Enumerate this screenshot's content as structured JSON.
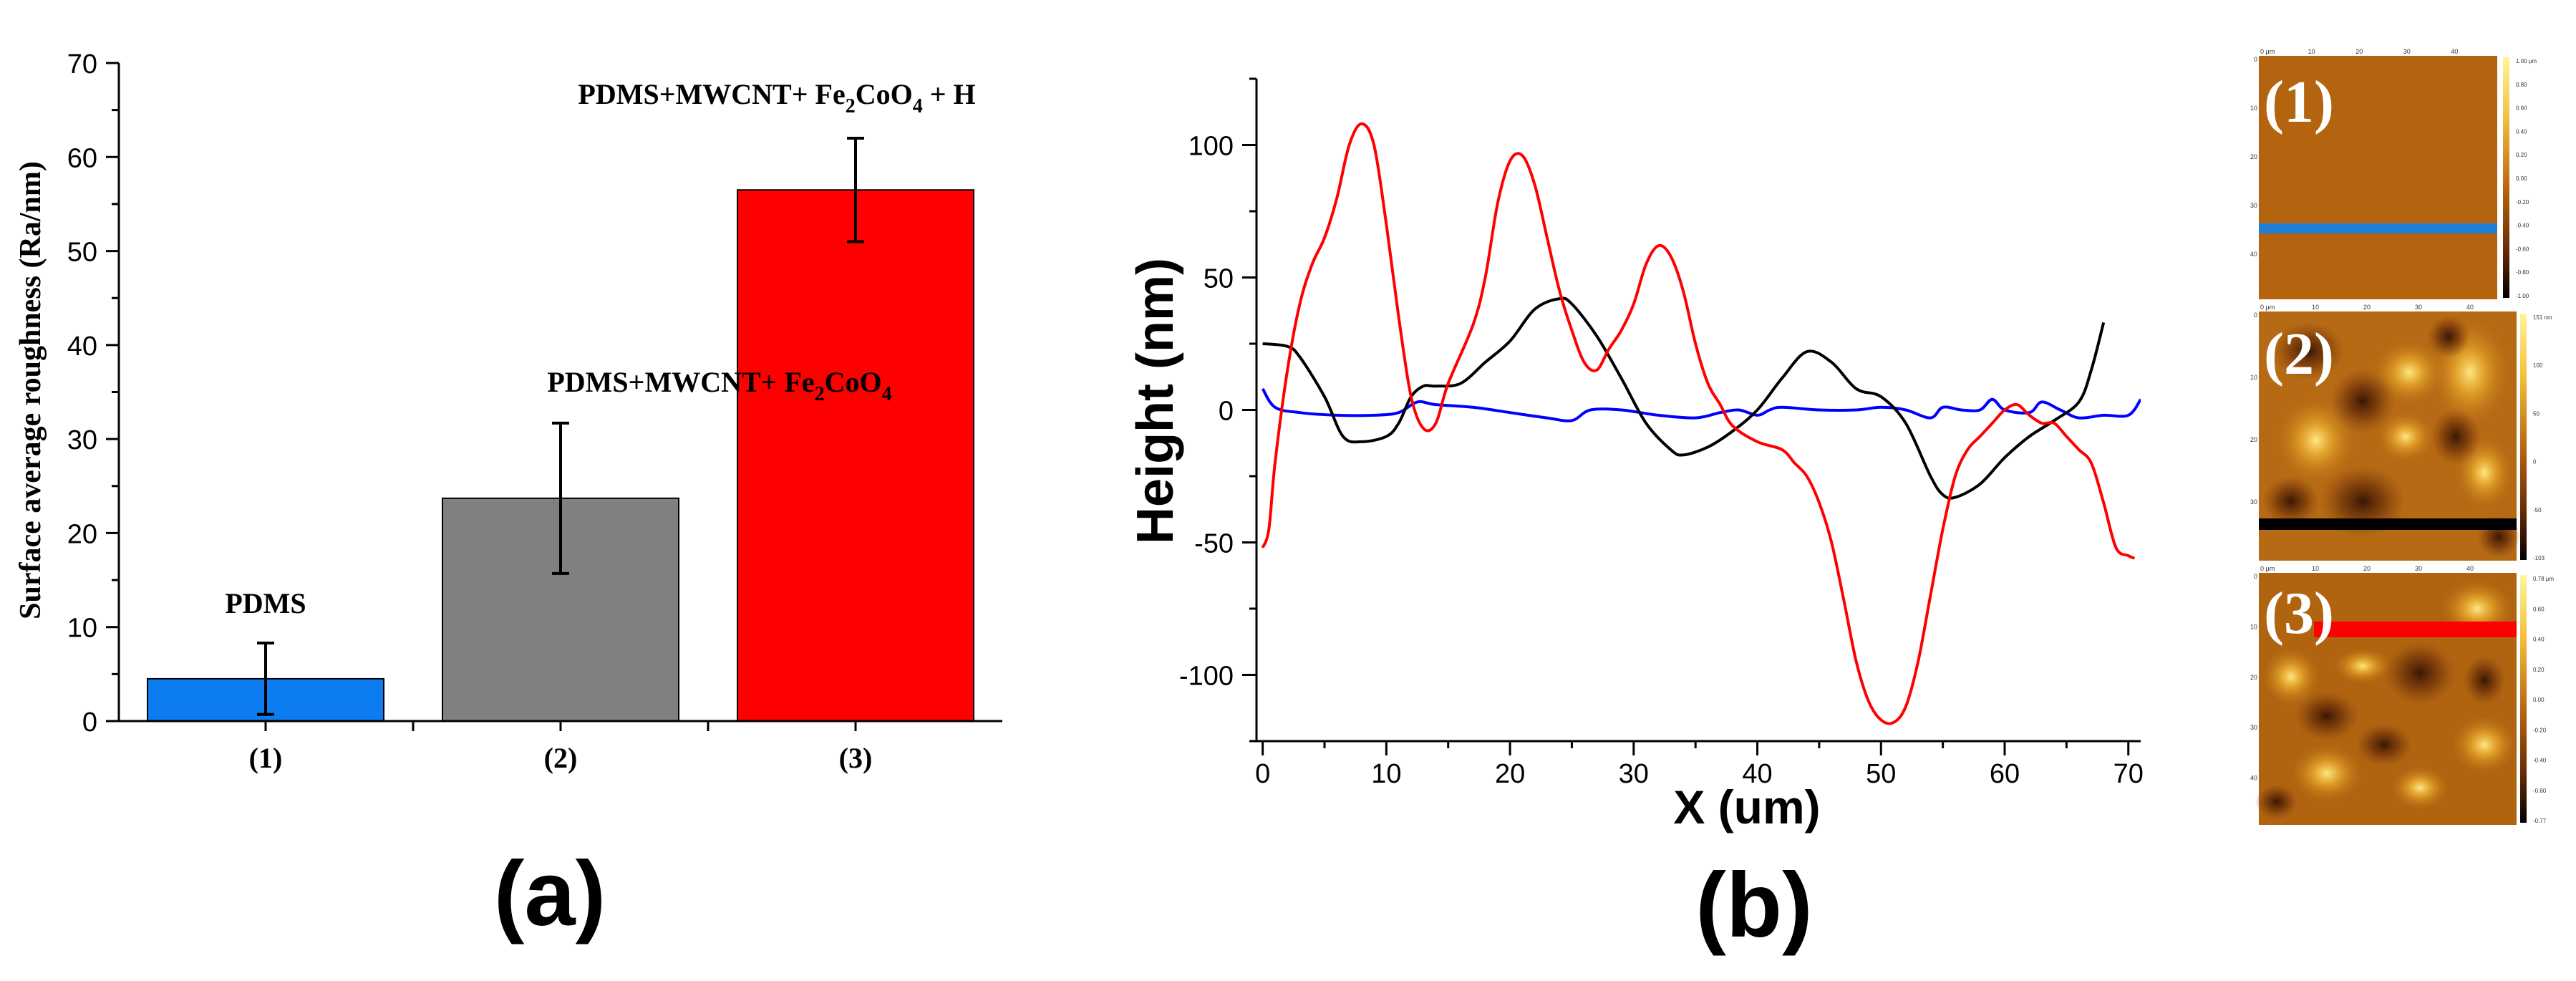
{
  "panel_a": {
    "caption": "(a)",
    "chart_data": {
      "type": "bar",
      "categories": [
        "(1)",
        "(2)",
        "(3)"
      ],
      "values": [
        4.5,
        23.7,
        56.5
      ],
      "errors": [
        3.8,
        8.0,
        5.5
      ],
      "colors": [
        "#0c7cf0",
        "#808080",
        "#ff0000"
      ],
      "annotations": [
        {
          "base": "PDMS",
          "sub": "",
          "mid": "",
          "sub2": "",
          "tail": ""
        },
        {
          "base": "PDMS+MWCNT+ Fe",
          "sub": "2",
          "mid": "CoO",
          "sub2": "4",
          "tail": ""
        },
        {
          "base": "PDMS+MWCNT+ Fe",
          "sub": "2",
          "mid": "CoO",
          "sub2": "4",
          "tail": " + H"
        }
      ],
      "ylabel": "Surface average roughness (Ra/nm)",
      "xlabel": "",
      "ylim": [
        0,
        70
      ],
      "yticks": [
        0,
        10,
        20,
        30,
        40,
        50,
        60,
        70
      ]
    }
  },
  "panel_b": {
    "caption": "(b)",
    "chart_data": {
      "type": "line",
      "xlabel": "X (um)",
      "ylabel": "Height (nm)",
      "xlim": [
        -0.5,
        71
      ],
      "ylim": [
        -125,
        125
      ],
      "xticks": [
        0,
        10,
        20,
        30,
        40,
        50,
        60,
        70
      ],
      "yticks": [
        -100,
        -50,
        0,
        50,
        100
      ],
      "series": [
        {
          "name": "(1)",
          "color": "#0000ff",
          "x": [
            0,
            1,
            3,
            6,
            9,
            11,
            12.5,
            14,
            17,
            20,
            23,
            25,
            26.5,
            29,
            32,
            35,
            37,
            38.5,
            40,
            41,
            42,
            45,
            48,
            50,
            52,
            54,
            55,
            56.5,
            58,
            59,
            60,
            62,
            63,
            64.5,
            66,
            68,
            70,
            71
          ],
          "y": [
            8,
            1,
            -1,
            -2,
            -2,
            -1,
            3,
            2,
            1,
            -1,
            -3,
            -4,
            0,
            0,
            -2,
            -3,
            -1,
            0,
            -2,
            0,
            1,
            0,
            0,
            1,
            0,
            -3,
            1,
            0,
            0,
            4,
            0,
            -1,
            3,
            0,
            -3,
            -2,
            -2,
            4
          ]
        },
        {
          "name": "(2)",
          "color": "#000000",
          "x": [
            0,
            2,
            3,
            5,
            6.5,
            8,
            10,
            11,
            12,
            13,
            14,
            16,
            18,
            20,
            22,
            24,
            25,
            27,
            29,
            31,
            33,
            34,
            36,
            38,
            40,
            42,
            44,
            46,
            48,
            50,
            52,
            54,
            55,
            56,
            58,
            60,
            62,
            64,
            66,
            67,
            68
          ],
          "y": [
            25,
            24,
            20,
            5,
            -10,
            -12,
            -10,
            -5,
            5,
            9,
            9,
            10,
            18,
            26,
            38,
            42,
            40,
            28,
            12,
            -5,
            -15,
            -17,
            -14,
            -8,
            0,
            12,
            22,
            18,
            8,
            5,
            -5,
            -25,
            -32,
            -33,
            -28,
            -18,
            -10,
            -4,
            3,
            15,
            33
          ]
        },
        {
          "name": "(3)",
          "color": "#ff0000",
          "x": [
            0,
            0.5,
            1,
            2,
            3,
            4,
            5,
            6,
            7,
            8,
            9,
            10,
            11,
            12,
            13,
            14,
            15,
            17,
            18,
            19,
            20,
            21,
            22,
            23,
            24,
            25,
            26,
            27,
            28,
            29,
            30,
            31,
            32,
            33,
            34,
            35,
            36,
            37,
            38,
            40,
            42,
            43,
            44,
            45,
            46,
            47,
            48,
            49,
            50,
            51,
            52,
            53,
            54,
            55,
            56,
            57,
            58,
            59,
            60,
            61,
            62,
            63,
            64,
            65,
            66,
            67,
            68,
            69,
            70,
            70.5
          ],
          "y": [
            -52,
            -45,
            -20,
            15,
            40,
            55,
            65,
            80,
            100,
            108,
            100,
            70,
            35,
            5,
            -7,
            -5,
            10,
            32,
            50,
            78,
            94,
            96,
            85,
            65,
            45,
            30,
            18,
            15,
            23,
            30,
            40,
            55,
            62,
            58,
            45,
            25,
            10,
            2,
            -6,
            -12,
            -15,
            -20,
            -25,
            -35,
            -50,
            -72,
            -95,
            -110,
            -117,
            -118,
            -112,
            -95,
            -70,
            -45,
            -25,
            -15,
            -10,
            -5,
            0,
            2,
            -2,
            -5,
            -5,
            -10,
            -15,
            -20,
            -35,
            -52,
            -55,
            -56
          ]
        }
      ]
    }
  },
  "afm": {
    "panels": [
      {
        "label": "(1)",
        "line_color": "#1e7fd6",
        "axis_top": [
          "0 µm",
          "10",
          "20",
          "30",
          "40"
        ],
        "axis_left": [
          "0",
          "10",
          "20",
          "30",
          "40"
        ],
        "scale": [
          "1.00 µm",
          "0.80",
          "0.60",
          "0.40",
          "0.20",
          "0.00",
          "-0.20",
          "-0.40",
          "-0.60",
          "-0.80",
          "-1.00"
        ]
      },
      {
        "label": "(2)",
        "line_color": "#000000",
        "axis_top": [
          "0 µm",
          "10",
          "20",
          "30",
          "40"
        ],
        "axis_left": [
          "0",
          "10",
          "20",
          "30"
        ],
        "scale": [
          "151 nm",
          "100",
          "50",
          "0",
          "-50",
          "-103"
        ]
      },
      {
        "label": "(3)",
        "line_color": "#ff0000",
        "axis_top": [
          "0 µm",
          "10",
          "20",
          "30",
          "40"
        ],
        "axis_left": [
          "0",
          "10",
          "20",
          "30",
          "40"
        ],
        "scale": [
          "0.78 µm",
          "0.60",
          "0.40",
          "0.20",
          "0.00",
          "-0.20",
          "-0.40",
          "-0.60",
          "-0.77"
        ]
      }
    ]
  }
}
